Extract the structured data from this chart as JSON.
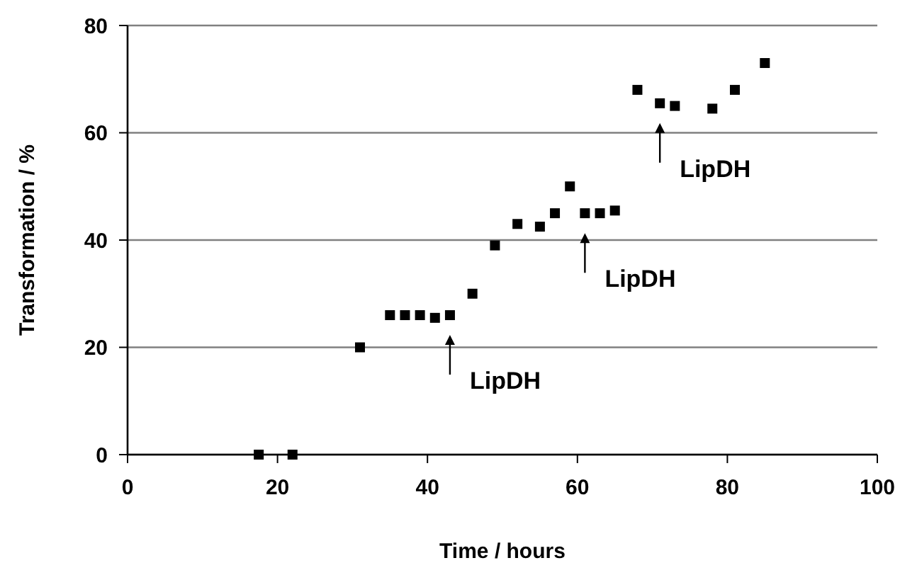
{
  "chart_data": {
    "type": "scatter",
    "xlabel": "Time / hours",
    "ylabel": "Transformation / %",
    "x": [
      17.5,
      22,
      31,
      35,
      37,
      39,
      41,
      43,
      46,
      49,
      52,
      55,
      57,
      59,
      61,
      63,
      65,
      68,
      71,
      73,
      78,
      81,
      85
    ],
    "series": [
      {
        "color": "#000000",
        "values": [
          0,
          0,
          20,
          26,
          26,
          26,
          25.5,
          26,
          30,
          39,
          43,
          42.5,
          45,
          50,
          45,
          45,
          45.5,
          68,
          65.5,
          65,
          64.5,
          68,
          73
        ]
      }
    ],
    "xlim": [
      0,
      100
    ],
    "xticks": [
      0,
      20,
      40,
      60,
      80,
      100
    ],
    "ylim": [
      0,
      80
    ],
    "yticks": [
      0,
      20,
      40,
      60,
      80
    ],
    "grid": "y",
    "marker": "square",
    "annotations": [
      {
        "text": "LipDH",
        "x": 43,
        "y": 26
      },
      {
        "text": "LipDH",
        "x": 61,
        "y": 45
      },
      {
        "text": "LipDH",
        "x": 71,
        "y": 65.5
      }
    ]
  }
}
